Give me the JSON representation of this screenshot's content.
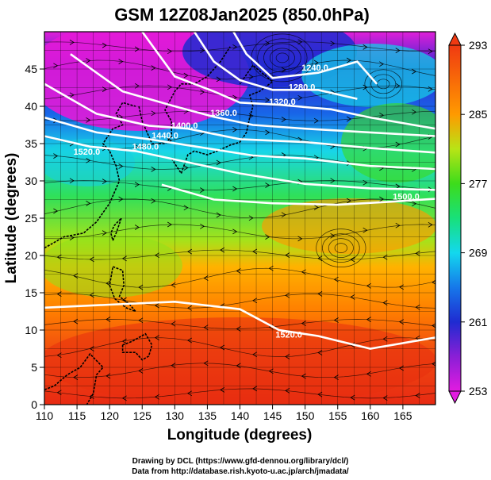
{
  "chart_data": {
    "type": "heatmap",
    "title": "GSM 12Z08Jan2025 (850.0hPa)",
    "xlabel": "Longitude (degrees)",
    "ylabel": "Latitude  (degrees)",
    "xlim": [
      110,
      170
    ],
    "ylim": [
      0,
      50
    ],
    "xticks": [
      110,
      115,
      120,
      125,
      130,
      135,
      140,
      145,
      150,
      155,
      160,
      165
    ],
    "yticks": [
      0,
      5,
      10,
      15,
      20,
      25,
      30,
      35,
      40,
      45
    ],
    "grid": true,
    "colorbar": {
      "ticks": [
        253,
        261,
        269,
        277,
        285,
        293
      ],
      "range": [
        253,
        293
      ],
      "colors": [
        "#e21be0",
        "#1f2bd1",
        "#13d8ee",
        "#3ddc1b",
        "#ff9a00",
        "#f03a12"
      ],
      "placement": "right"
    },
    "contour_labels": [
      {
        "text": "1240.0",
        "lon": 151.5,
        "lat": 44.8
      },
      {
        "text": "1280.0",
        "lon": 149.5,
        "lat": 42.2
      },
      {
        "text": "1320.0",
        "lon": 146.5,
        "lat": 40.2
      },
      {
        "text": "1360.0",
        "lon": 137.5,
        "lat": 38.7
      },
      {
        "text": "1400.0",
        "lon": 131.5,
        "lat": 37.0
      },
      {
        "text": "1440.0",
        "lon": 128.5,
        "lat": 35.7
      },
      {
        "text": "1480.0",
        "lon": 125.5,
        "lat": 34.2
      },
      {
        "text": "1520.0",
        "lon": 147.5,
        "lat": 9.0
      },
      {
        "text": "1520.0",
        "lon": 116.5,
        "lat": 33.5
      },
      {
        "text": "1500.0",
        "lon": 165.5,
        "lat": 27.5
      }
    ],
    "contour_levels": [
      1240,
      1280,
      1320,
      1360,
      1400,
      1440,
      1480,
      1500,
      1520
    ]
  },
  "credits": [
    "Drawing by DCL (https://www.gfd-dennou.org/library/dcl/)",
    "Data from http://database.rish.kyoto-u.ac.jp/arch/jmadata/"
  ]
}
